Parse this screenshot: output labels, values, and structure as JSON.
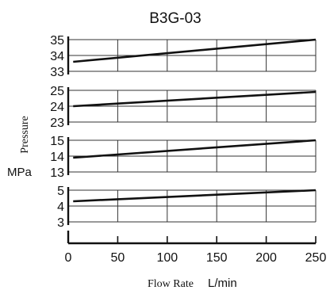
{
  "chart_data": {
    "type": "line",
    "title": "B3G-03",
    "xlabel": "Flow Rate",
    "xunit": "L/min",
    "ylabel": "Pressure",
    "yunit": "MPa",
    "xlim": [
      0,
      250
    ],
    "xticks": [
      "0",
      "50",
      "100",
      "150",
      "200",
      "250"
    ],
    "grid": true,
    "panels": [
      {
        "ylim": [
          33,
          35
        ],
        "yticks": [
          "35",
          "34",
          "33"
        ],
        "x": [
          5,
          250
        ],
        "y": [
          33.6,
          35.0
        ]
      },
      {
        "ylim": [
          23,
          25
        ],
        "yticks": [
          "25",
          "24",
          "23"
        ],
        "x": [
          5,
          250
        ],
        "y": [
          24.0,
          24.9
        ]
      },
      {
        "ylim": [
          13,
          15
        ],
        "yticks": [
          "15",
          "14",
          "13"
        ],
        "x": [
          5,
          250
        ],
        "y": [
          13.9,
          15.0
        ]
      },
      {
        "ylim": [
          3,
          5
        ],
        "yticks": [
          "5",
          "4",
          "3"
        ],
        "x": [
          5,
          250
        ],
        "y": [
          4.3,
          5.0
        ]
      }
    ]
  }
}
